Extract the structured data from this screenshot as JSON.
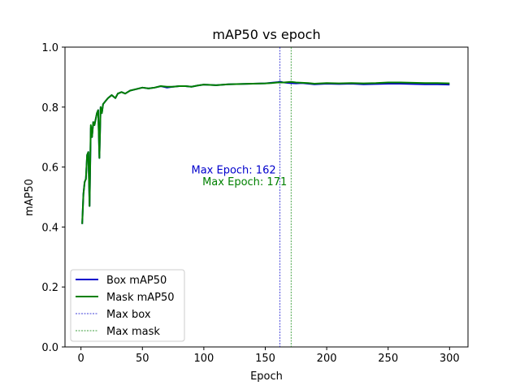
{
  "chart_data": {
    "type": "line",
    "title": "mAP50 vs epoch",
    "xlabel": "Epoch",
    "ylabel": "mAP50",
    "xlim": [
      -13,
      315
    ],
    "ylim": [
      0,
      1.0
    ],
    "xticks": [
      0,
      50,
      100,
      150,
      200,
      250,
      300
    ],
    "yticks": [
      0.0,
      0.2,
      0.4,
      0.6,
      0.8,
      1.0
    ],
    "xtick_labels": [
      "0",
      "50",
      "100",
      "150",
      "200",
      "250",
      "300"
    ],
    "ytick_labels": [
      "0.0",
      "0.2",
      "0.4",
      "0.6",
      "0.8",
      "1.0"
    ],
    "grid": false,
    "legend_placement": "lower-left",
    "series": [
      {
        "name": "Box mAP50",
        "color": "#0000cc",
        "style": "solid",
        "x": [
          1,
          2,
          3,
          4,
          5,
          6,
          7,
          8,
          9,
          10,
          11,
          12,
          13,
          14,
          15,
          16,
          17,
          18,
          20,
          22,
          25,
          28,
          30,
          33,
          36,
          40,
          45,
          50,
          55,
          60,
          65,
          70,
          75,
          80,
          85,
          90,
          95,
          100,
          110,
          120,
          130,
          140,
          150,
          155,
          160,
          162,
          165,
          170,
          175,
          180,
          185,
          190,
          195,
          200,
          210,
          220,
          230,
          240,
          250,
          260,
          270,
          280,
          290,
          300
        ],
        "y": [
          0.41,
          0.51,
          0.55,
          0.56,
          0.64,
          0.65,
          0.47,
          0.73,
          0.7,
          0.75,
          0.74,
          0.76,
          0.78,
          0.79,
          0.63,
          0.8,
          0.78,
          0.81,
          0.82,
          0.83,
          0.84,
          0.83,
          0.845,
          0.85,
          0.845,
          0.855,
          0.86,
          0.865,
          0.862,
          0.865,
          0.87,
          0.865,
          0.868,
          0.87,
          0.87,
          0.868,
          0.872,
          0.875,
          0.873,
          0.876,
          0.877,
          0.878,
          0.879,
          0.881,
          0.883,
          0.885,
          0.882,
          0.88,
          0.879,
          0.88,
          0.878,
          0.876,
          0.877,
          0.878,
          0.877,
          0.878,
          0.876,
          0.877,
          0.878,
          0.878,
          0.877,
          0.876,
          0.876,
          0.875
        ]
      },
      {
        "name": "Mask mAP50",
        "color": "#008000",
        "style": "solid",
        "x": [
          1,
          2,
          3,
          4,
          5,
          6,
          7,
          8,
          9,
          10,
          11,
          12,
          13,
          14,
          15,
          16,
          17,
          18,
          20,
          22,
          25,
          28,
          30,
          33,
          36,
          40,
          45,
          50,
          55,
          60,
          65,
          70,
          75,
          80,
          85,
          90,
          95,
          100,
          110,
          120,
          130,
          140,
          150,
          155,
          160,
          165,
          171,
          175,
          180,
          185,
          190,
          195,
          200,
          210,
          220,
          230,
          240,
          250,
          260,
          270,
          280,
          290,
          300
        ],
        "y": [
          0.41,
          0.51,
          0.55,
          0.56,
          0.64,
          0.65,
          0.47,
          0.74,
          0.7,
          0.75,
          0.74,
          0.76,
          0.78,
          0.79,
          0.63,
          0.8,
          0.78,
          0.81,
          0.82,
          0.83,
          0.84,
          0.83,
          0.845,
          0.85,
          0.845,
          0.855,
          0.86,
          0.865,
          0.862,
          0.865,
          0.87,
          0.868,
          0.868,
          0.87,
          0.87,
          0.868,
          0.872,
          0.875,
          0.873,
          0.876,
          0.877,
          0.878,
          0.879,
          0.88,
          0.882,
          0.882,
          0.884,
          0.882,
          0.881,
          0.88,
          0.878,
          0.879,
          0.88,
          0.879,
          0.88,
          0.879,
          0.88,
          0.882,
          0.882,
          0.881,
          0.88,
          0.88,
          0.879
        ]
      },
      {
        "name": "Max box",
        "color": "#0000cc",
        "style": "dashed",
        "vline_x": 162
      },
      {
        "name": "Max mask",
        "color": "#008000",
        "style": "dashed",
        "vline_x": 171
      }
    ],
    "annotations": [
      {
        "text": "Max Epoch: 162",
        "x": 162,
        "y": 0.59,
        "color": "#0000cc",
        "align": "right"
      },
      {
        "text": "Max Epoch: 171",
        "x": 171,
        "y": 0.55,
        "color": "#008000",
        "align": "right"
      }
    ]
  }
}
